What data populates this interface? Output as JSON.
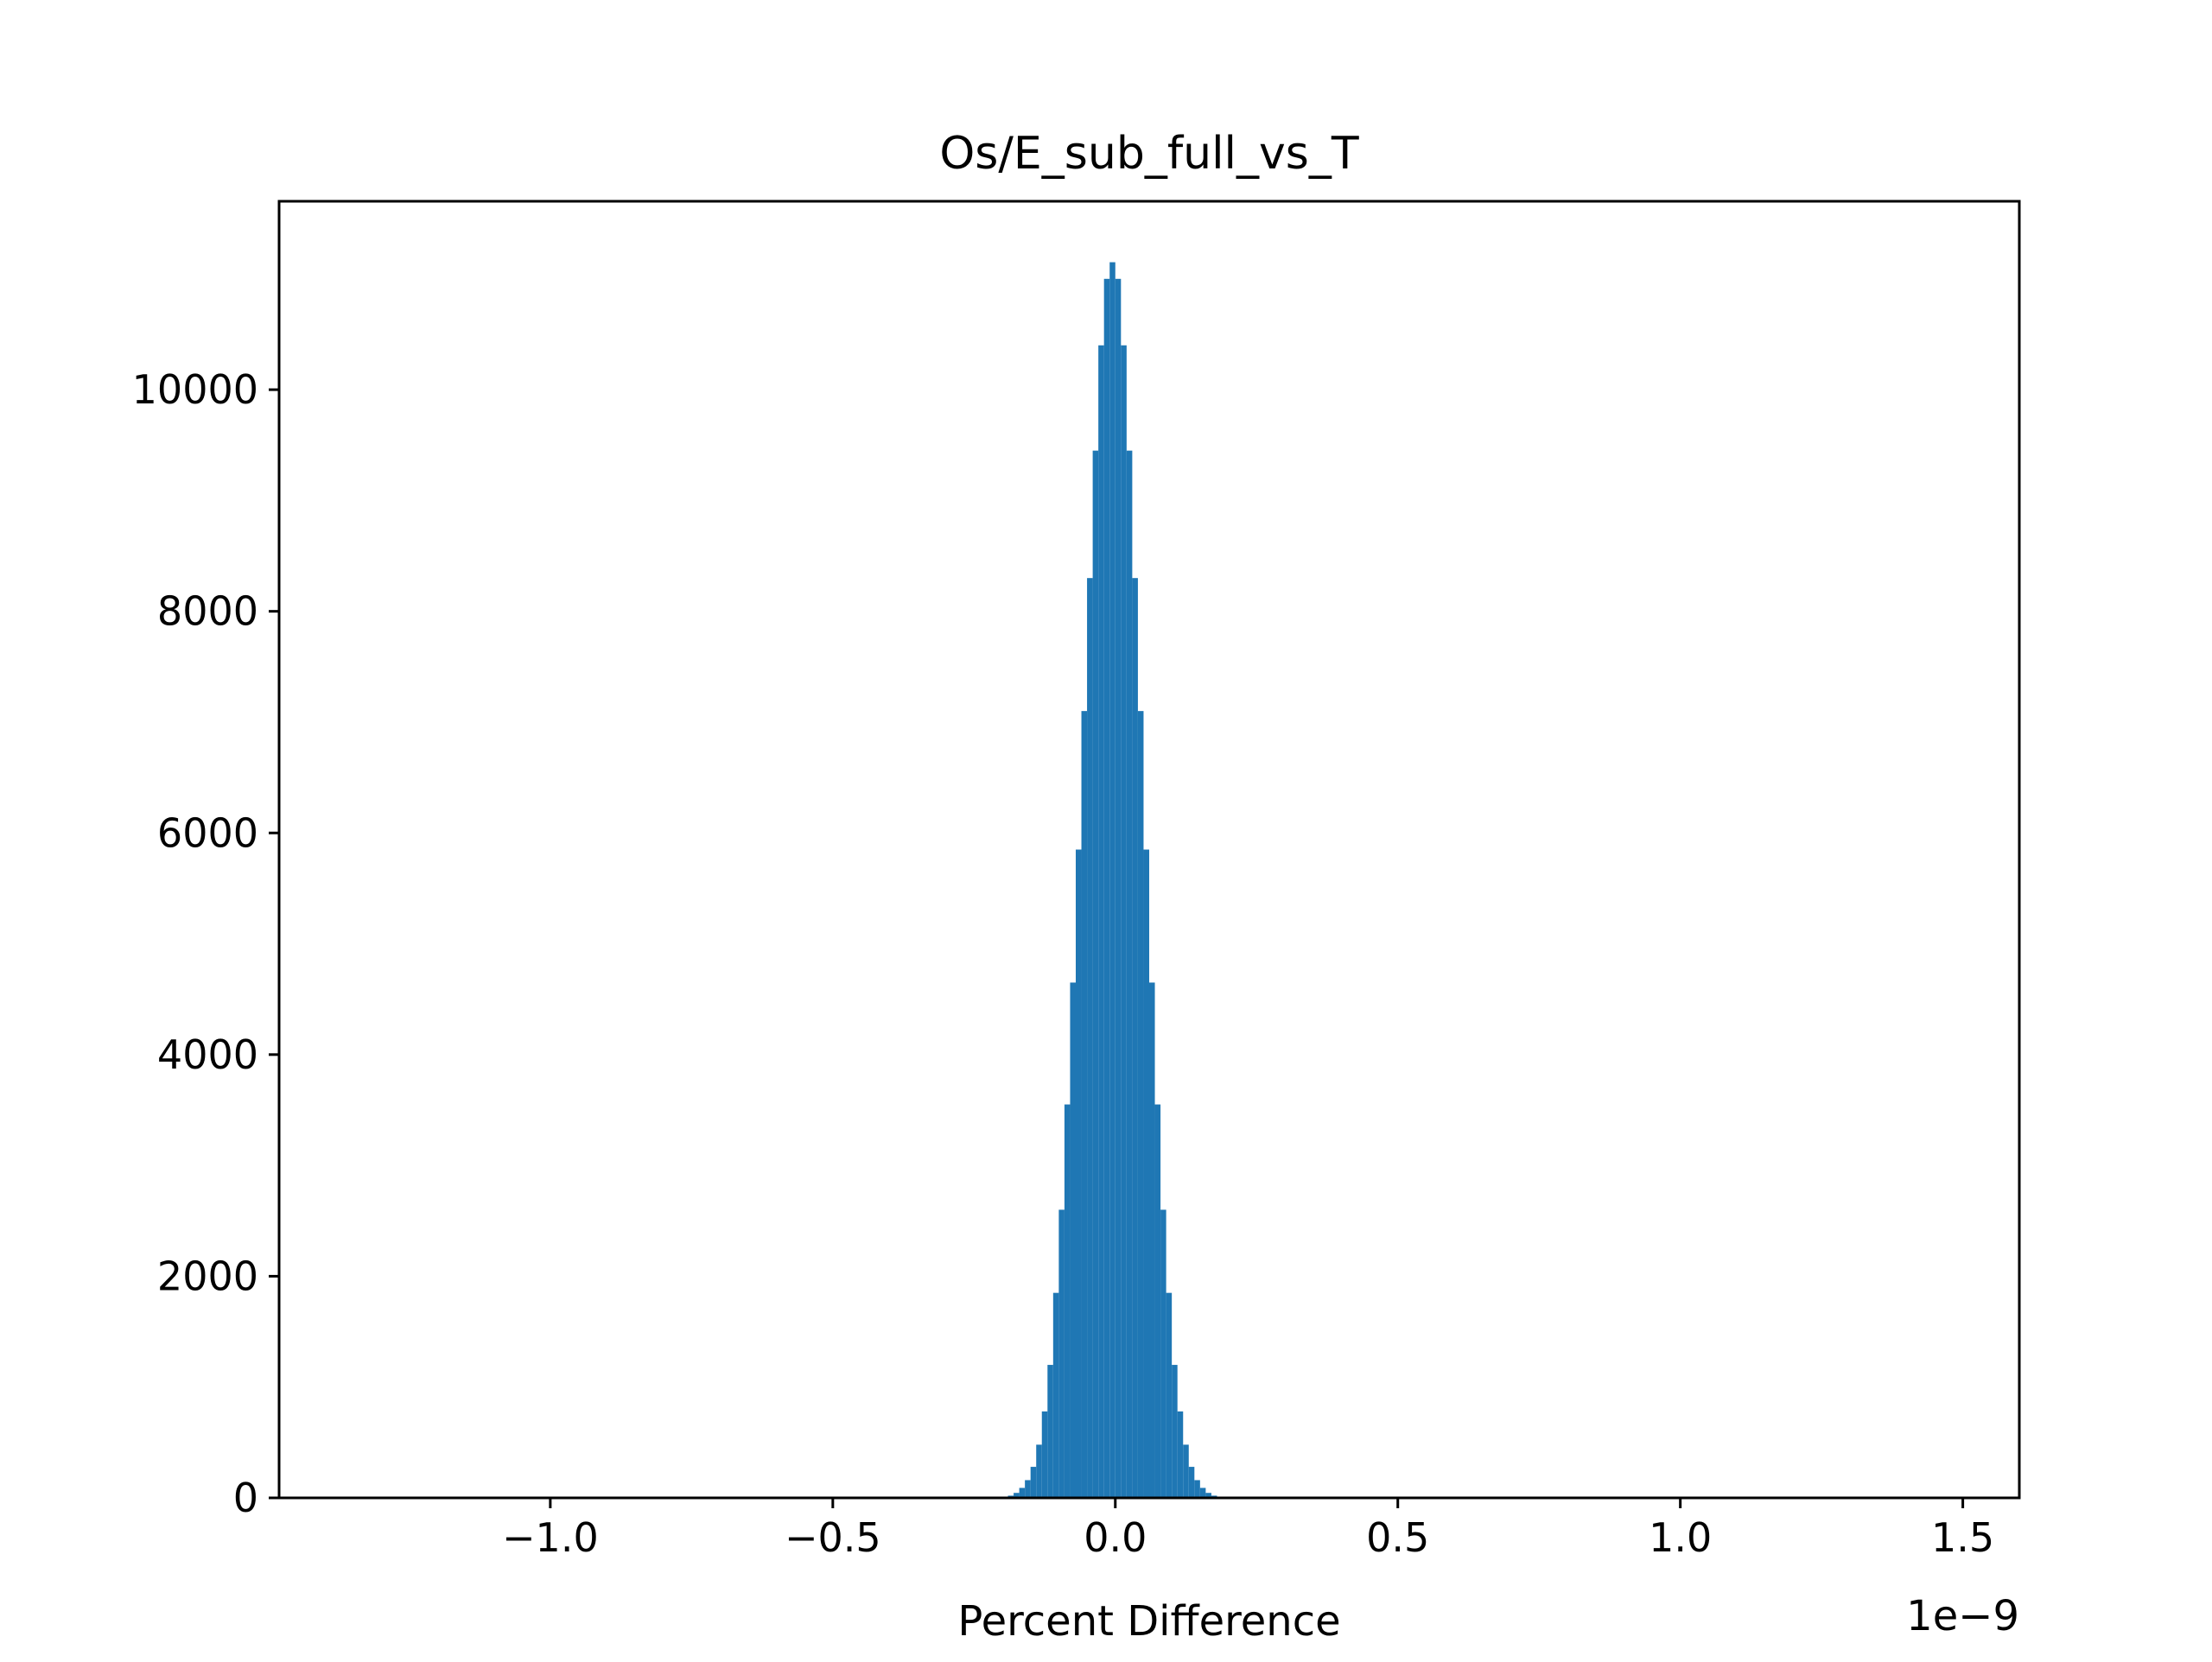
{
  "chart_data": {
    "type": "bar",
    "title": "Os/E_sub_full_vs_T",
    "xlabel": "Percent Difference",
    "ylabel": "",
    "x_offset_label": "1e−9",
    "xlim": [
      -1.48,
      1.6
    ],
    "ylim": [
      0,
      11700
    ],
    "xticks": [
      -1.0,
      -0.5,
      0.0,
      0.5,
      1.0,
      1.5
    ],
    "xtick_labels": [
      "−1.0",
      "−0.5",
      "0.0",
      "0.5",
      "1.0",
      "1.5"
    ],
    "yticks": [
      0,
      2000,
      4000,
      6000,
      8000,
      10000
    ],
    "ytick_labels": [
      "0",
      "2000",
      "4000",
      "6000",
      "8000",
      "10000"
    ],
    "grid": false,
    "bar_color": "#1f77b4",
    "bin_width": 0.01,
    "bin_centers": [
      -0.185,
      -0.175,
      -0.165,
      -0.155,
      -0.145,
      -0.135,
      -0.125,
      -0.115,
      -0.105,
      -0.095,
      -0.085,
      -0.075,
      -0.065,
      -0.055,
      -0.045,
      -0.035,
      -0.025,
      -0.015,
      -0.005,
      0.005,
      0.015,
      0.025,
      0.035,
      0.045,
      0.055,
      0.065,
      0.075,
      0.085,
      0.095,
      0.105,
      0.115,
      0.125,
      0.135,
      0.145,
      0.155,
      0.165,
      0.175,
      0.185
    ],
    "counts": [
      20,
      45,
      90,
      160,
      280,
      480,
      780,
      1200,
      1850,
      2600,
      3550,
      4650,
      5850,
      7100,
      8300,
      9450,
      10400,
      11000,
      11150,
      11000,
      10400,
      9450,
      8300,
      7100,
      5850,
      4650,
      3550,
      2600,
      1850,
      1200,
      780,
      480,
      280,
      160,
      90,
      45,
      20,
      5
    ]
  }
}
